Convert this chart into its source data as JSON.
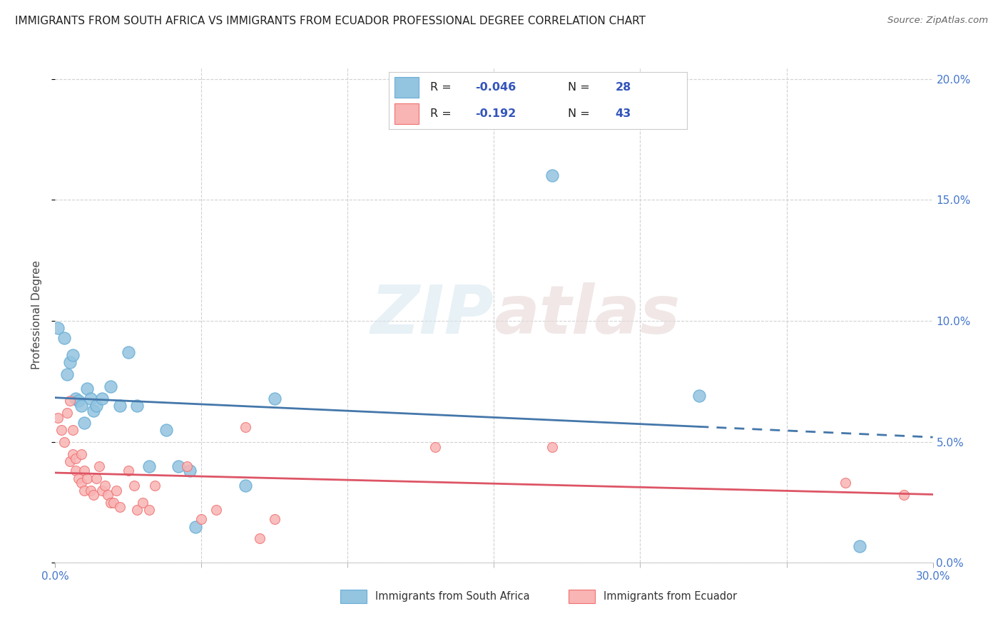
{
  "title": "IMMIGRANTS FROM SOUTH AFRICA VS IMMIGRANTS FROM ECUADOR PROFESSIONAL DEGREE CORRELATION CHART",
  "source": "Source: ZipAtlas.com",
  "ylabel": "Professional Degree",
  "xlim": [
    0.0,
    0.3
  ],
  "ylim": [
    0.0,
    0.205
  ],
  "ytick_vals": [
    0.0,
    0.05,
    0.1,
    0.15,
    0.2
  ],
  "ytick_labels": [
    "0.0%",
    "5.0%",
    "10.0%",
    "15.0%",
    "20.0%"
  ],
  "xtick_minor_vals": [
    0.05,
    0.1,
    0.15,
    0.2,
    0.25
  ],
  "blue_color": "#93c4e0",
  "blue_edge": "#6aaed6",
  "pink_color": "#f9b4b4",
  "pink_edge": "#f07070",
  "line_blue": "#4477aa",
  "line_pink": "#dd5566",
  "background": "#ffffff",
  "watermark": "ZIPatlas",
  "legend_R_blue": "-0.046",
  "legend_N_blue": "28",
  "legend_R_pink": "-0.192",
  "legend_N_pink": "43",
  "legend_color": "#3355bb",
  "south_africa_x": [
    0.001,
    0.003,
    0.004,
    0.005,
    0.006,
    0.007,
    0.008,
    0.009,
    0.01,
    0.011,
    0.012,
    0.013,
    0.014,
    0.016,
    0.019,
    0.022,
    0.025,
    0.028,
    0.032,
    0.038,
    0.042,
    0.046,
    0.048,
    0.065,
    0.075,
    0.17,
    0.22,
    0.275
  ],
  "south_africa_y": [
    0.097,
    0.093,
    0.078,
    0.083,
    0.086,
    0.068,
    0.067,
    0.065,
    0.058,
    0.072,
    0.068,
    0.063,
    0.065,
    0.068,
    0.073,
    0.065,
    0.087,
    0.065,
    0.04,
    0.055,
    0.04,
    0.038,
    0.015,
    0.032,
    0.068,
    0.16,
    0.069,
    0.007
  ],
  "ecuador_x": [
    0.001,
    0.002,
    0.003,
    0.004,
    0.005,
    0.005,
    0.006,
    0.006,
    0.007,
    0.007,
    0.008,
    0.009,
    0.009,
    0.01,
    0.01,
    0.011,
    0.012,
    0.013,
    0.014,
    0.015,
    0.016,
    0.017,
    0.018,
    0.019,
    0.02,
    0.021,
    0.022,
    0.025,
    0.027,
    0.028,
    0.03,
    0.032,
    0.034,
    0.045,
    0.05,
    0.055,
    0.065,
    0.07,
    0.075,
    0.13,
    0.17,
    0.27,
    0.29
  ],
  "ecuador_y": [
    0.06,
    0.055,
    0.05,
    0.062,
    0.042,
    0.067,
    0.055,
    0.045,
    0.038,
    0.043,
    0.035,
    0.033,
    0.045,
    0.038,
    0.03,
    0.035,
    0.03,
    0.028,
    0.035,
    0.04,
    0.03,
    0.032,
    0.028,
    0.025,
    0.025,
    0.03,
    0.023,
    0.038,
    0.032,
    0.022,
    0.025,
    0.022,
    0.032,
    0.04,
    0.018,
    0.022,
    0.056,
    0.01,
    0.018,
    0.048,
    0.048,
    0.033,
    0.028
  ]
}
